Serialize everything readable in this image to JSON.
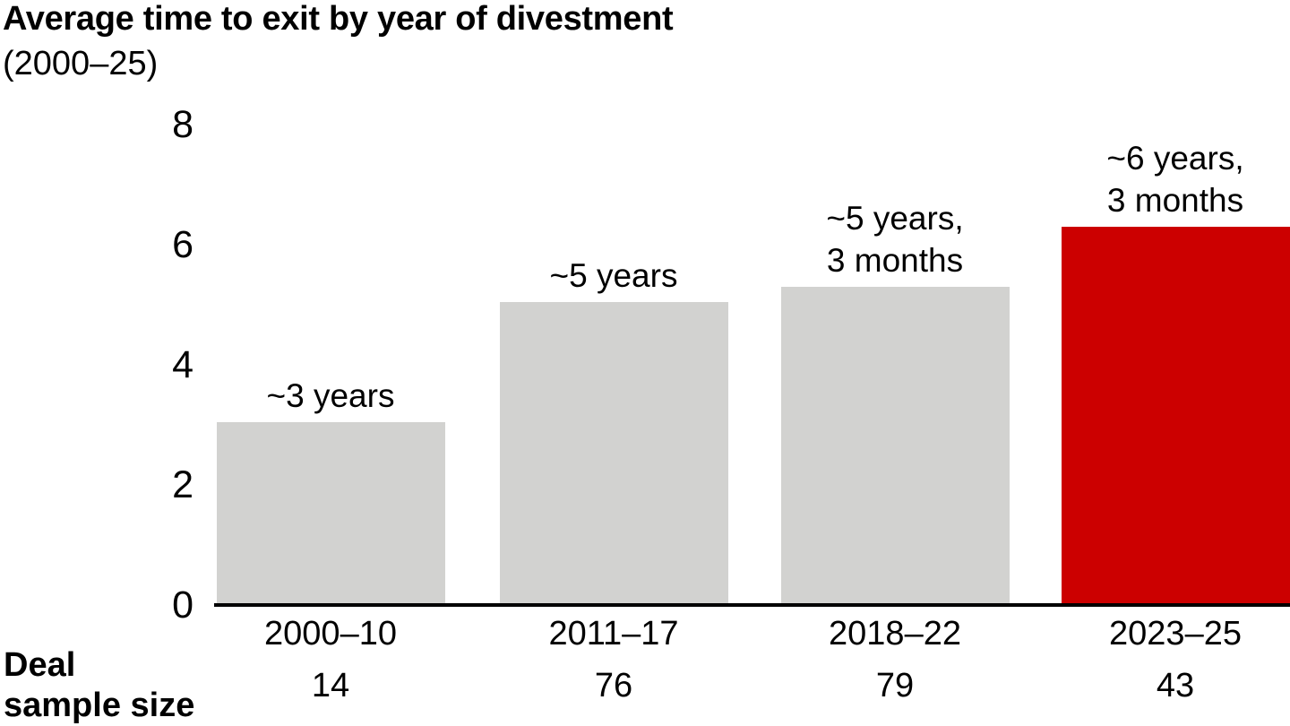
{
  "chart_data": {
    "type": "bar",
    "title": "Average time to exit by year of divestment",
    "subtitle": "(2000–25)",
    "categories": [
      "2000–10",
      "2011–17",
      "2018–22",
      "2023–25"
    ],
    "values_years": [
      3.05,
      5.05,
      5.3,
      6.3
    ],
    "bar_labels": [
      "~3 years",
      "~5 years",
      "~5 years,\n3 months",
      "~6 years,\n3 months"
    ],
    "highlight_index": 3,
    "yticks": [
      0,
      2,
      4,
      6,
      8
    ],
    "ylim": [
      0,
      8
    ],
    "grid": "off",
    "legend": "none",
    "deal_sample_label": "Deal\nsample size",
    "deal_sample_sizes": [
      "14",
      "76",
      "79",
      "43"
    ],
    "colors": {
      "bar_default": "#d2d2d0",
      "bar_highlight": "#cc0000",
      "axis": "#000000",
      "text": "#000000"
    }
  }
}
